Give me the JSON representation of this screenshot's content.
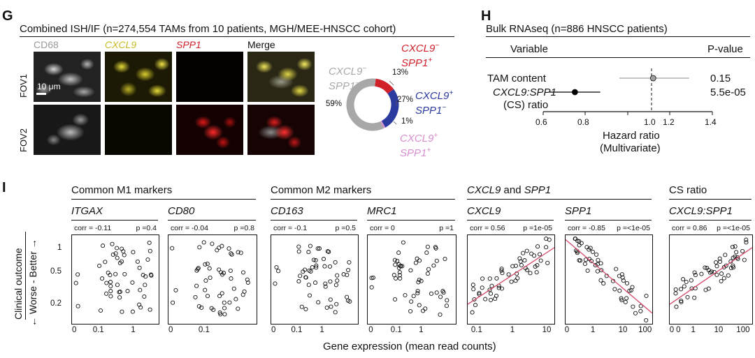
{
  "panelG": {
    "letter": "G",
    "title": "Combined ISH/IF (n=274,554 TAMs from 10 patients, MGH/MEE-HNSCC cohort)",
    "channels": [
      "CD68",
      "CXCL9",
      "SPP1",
      "Merge"
    ],
    "rows": [
      "FOV1",
      "FOV2"
    ],
    "scalebar": "10 μm",
    "donut": {
      "segments": [
        {
          "label_a": "CXCL9",
          "sign_a": "−",
          "label_b": "SPP1",
          "sign_b": "+",
          "percent": "13%",
          "value": 13,
          "color": "#d0202a"
        },
        {
          "label_a": "CXCL9",
          "sign_a": "+",
          "label_b": "SPP1",
          "sign_b": "−",
          "percent": "27%",
          "value": 27,
          "color": "#2b3a9e"
        },
        {
          "label_a": "CXCL9",
          "sign_a": "+",
          "label_b": "SPP1",
          "sign_b": "+",
          "percent": "1%",
          "value": 1,
          "color": "#d98fd0"
        },
        {
          "label_a": "CXCL9",
          "sign_a": "−",
          "label_b": "SPP1",
          "sign_b": "−",
          "percent": "59%",
          "value": 59,
          "color": "#a8a8a8"
        }
      ]
    }
  },
  "panelH": {
    "letter": "H",
    "title": "Bulk RNAseq (n=886 HNSCC patients)",
    "col_variable": "Variable",
    "col_pvalue": "P-value",
    "rows": [
      {
        "label": "TAM content",
        "label2": "",
        "pvalue": "0.15",
        "hr": 1.12,
        "lo": 0.96,
        "hi": 1.29,
        "color": "#a0a0a0"
      },
      {
        "label": "CXCL9:SPP1",
        "label2": "(CS) ratio",
        "pvalue": "5.5e-05",
        "hr": 0.75,
        "lo": 0.63,
        "hi": 0.87,
        "color": "#000000"
      }
    ],
    "xticks": [
      "0.6",
      "0.8",
      "1.0",
      "1.2",
      "1.4"
    ],
    "xlabel1": "Hazard ratio",
    "xlabel2": "(Multivariate)"
  },
  "panelI": {
    "letter": "I",
    "groups": [
      {
        "title_parts": [
          "Common M1 markers"
        ]
      },
      {
        "title_parts": [
          "Common M2 markers"
        ]
      },
      {
        "title_parts": [
          "CXCL9",
          " and ",
          "SPP1"
        ]
      },
      {
        "title_parts": [
          "CS ratio"
        ]
      }
    ],
    "ylabel_a": "Clinical outcome",
    "ylabel_b": "← Worse - Better →",
    "yticks": [
      "1",
      "0.5",
      "0.2"
    ],
    "xlabel": "Gene expression (mean read counts)",
    "chart_data": [
      {
        "type": "scatter",
        "gene": "ITGAX",
        "corr": "corr = -0.11",
        "p": "p =0.4",
        "xticks": [
          "0",
          "0.1",
          "1"
        ],
        "fit": false
      },
      {
        "type": "scatter",
        "gene": "CD80",
        "corr": "corr = -0.04",
        "p": "p =0.8",
        "xticks": [
          "0",
          "0.1"
        ],
        "fit": false
      },
      {
        "type": "scatter",
        "gene": "CD163",
        "corr": "corr = -0.1",
        "p": "p =0.5",
        "xticks": [
          "0",
          "0.1",
          "1"
        ],
        "fit": false
      },
      {
        "type": "scatter",
        "gene": "MRC1",
        "corr": "corr = 0",
        "p": "p =1",
        "xticks": [
          "0",
          "0.1",
          "1"
        ],
        "fit": false
      },
      {
        "type": "scatter",
        "gene": "CXCL9",
        "corr": "corr = 0.56",
        "p": "p =1e-05",
        "xticks": [
          "0.1",
          "1",
          "10"
        ],
        "fit": true,
        "slope": 1
      },
      {
        "type": "scatter",
        "gene": "SPP1",
        "corr": "corr = -0.85",
        "p": "p =<1e-05",
        "xticks": [
          "0",
          "1",
          "10",
          "100"
        ],
        "fit": true,
        "slope": -1
      },
      {
        "type": "scatter",
        "gene": "CXCL9:SPP1",
        "corr": "corr = 0.86",
        "p": "p =<1e-05",
        "xticks": [
          "0",
          "0",
          "1",
          "10",
          "100"
        ],
        "fit": true,
        "slope": 1
      }
    ]
  }
}
